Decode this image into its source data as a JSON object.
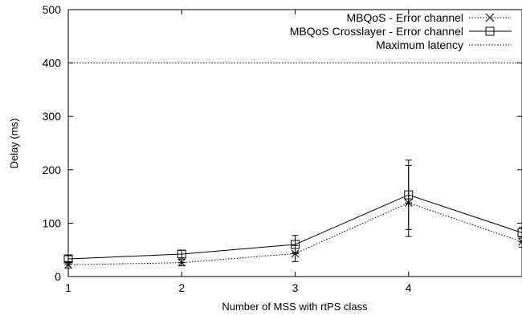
{
  "chart_data": {
    "type": "line",
    "xlabel": "Number of MSS with rtPS class",
    "ylabel": "Delay (ms)",
    "xlim": [
      1,
      5
    ],
    "ylim": [
      0,
      500
    ],
    "x_ticks": [
      "1",
      "2",
      "3",
      "4"
    ],
    "y_ticks": [
      "0",
      "100",
      "200",
      "300",
      "400",
      "500"
    ],
    "x": [
      1,
      2,
      3,
      4,
      5
    ],
    "series": [
      {
        "name": "MBQoS - Error channel",
        "values": [
          22,
          26,
          43,
          138,
          65
        ],
        "error_low": [
          16,
          20,
          28,
          88,
          55
        ],
        "error_high": [
          28,
          32,
          58,
          208,
          75
        ],
        "line_style": "dotted",
        "marker": "star"
      },
      {
        "name": "MBQoS Crosslayer - Error channel",
        "values": [
          33,
          42,
          60,
          153,
          82
        ],
        "error_low": [
          27,
          35,
          45,
          75,
          72
        ],
        "error_high": [
          39,
          49,
          77,
          218,
          92
        ],
        "line_style": "solid",
        "marker": "square"
      },
      {
        "name": "Maximum latency",
        "values": [
          400,
          400,
          400,
          400,
          400
        ],
        "line_style": "dotted",
        "marker": "none"
      }
    ],
    "legend_position": "top-right",
    "grid": false
  }
}
